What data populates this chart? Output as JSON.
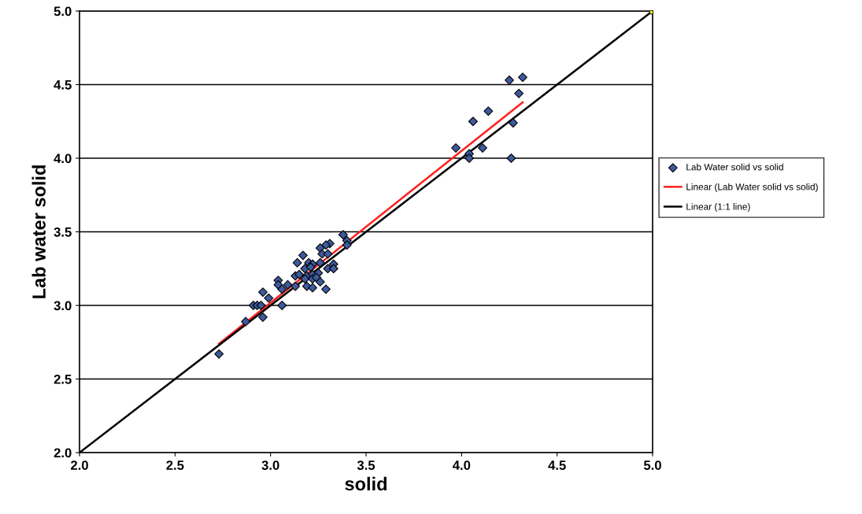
{
  "chart_data": {
    "type": "scatter",
    "xlabel": "solid",
    "ylabel": "Lab water solid",
    "xlim": [
      2.0,
      5.0
    ],
    "ylim": [
      2.0,
      5.0
    ],
    "xticks": [
      {
        "value": 2.0,
        "label": "2.0"
      },
      {
        "value": 2.5,
        "label": "2.5"
      },
      {
        "value": 3.0,
        "label": "3.0"
      },
      {
        "value": 3.5,
        "label": "3.5"
      },
      {
        "value": 4.0,
        "label": "4.0"
      },
      {
        "value": 4.5,
        "label": "4.5"
      },
      {
        "value": 5.0,
        "label": "5.0"
      }
    ],
    "yticks": [
      {
        "value": 2.0,
        "label": "2.0"
      },
      {
        "value": 2.5,
        "label": "2.5"
      },
      {
        "value": 3.0,
        "label": "3.0"
      },
      {
        "value": 3.5,
        "label": "3.5"
      },
      {
        "value": 4.0,
        "label": "4.0"
      },
      {
        "value": 4.5,
        "label": "4.5"
      },
      {
        "value": 5.0,
        "label": "5.0"
      }
    ],
    "grid": "y",
    "legend": "right",
    "series": [
      {
        "name": "Lab Water solid vs solid",
        "marker": "diamond",
        "color": "#3d5a9e",
        "x": [
          4.25,
          4.32,
          4.3,
          4.14,
          4.06,
          3.97,
          4.11,
          4.04,
          4.04,
          4.26,
          4.27,
          3.38,
          3.4,
          3.4,
          3.31,
          3.29,
          3.26,
          3.27,
          3.3,
          3.17,
          3.14,
          3.2,
          3.22,
          3.26,
          3.33,
          3.18,
          3.21,
          3.3,
          3.33,
          3.13,
          3.15,
          3.19,
          3.22,
          3.25,
          3.18,
          3.22,
          3.24,
          3.04,
          3.04,
          3.09,
          3.13,
          3.19,
          3.22,
          3.26,
          3.06,
          3.29,
          2.96,
          2.99,
          2.91,
          2.93,
          2.95,
          3.06,
          2.87,
          2.96,
          2.73
        ],
        "values": [
          4.53,
          4.55,
          4.44,
          4.32,
          4.25,
          4.07,
          4.07,
          4.03,
          4.0,
          4.0,
          4.24,
          3.48,
          3.44,
          3.41,
          3.42,
          3.41,
          3.39,
          3.35,
          3.35,
          3.34,
          3.29,
          3.29,
          3.28,
          3.29,
          3.28,
          3.25,
          3.26,
          3.25,
          3.25,
          3.2,
          3.21,
          3.2,
          3.21,
          3.22,
          3.18,
          3.18,
          3.19,
          3.17,
          3.14,
          3.14,
          3.13,
          3.13,
          3.12,
          3.16,
          3.11,
          3.11,
          3.09,
          3.05,
          3.0,
          3.0,
          3.0,
          3.0,
          2.89,
          2.92,
          2.67
        ]
      },
      {
        "name": "Linear (Lab Water solid vs solid)",
        "type": "line",
        "color": "#ff2020",
        "x": [
          2.73,
          4.32
        ],
        "values": [
          2.74,
          4.38
        ]
      },
      {
        "name": "Linear (1:1 line)",
        "type": "line",
        "color": "#000000",
        "x": [
          2.0,
          5.0
        ],
        "values": [
          2.0,
          5.0
        ]
      },
      {
        "marker": "square",
        "color": "#ffff00",
        "x": [
          5.0
        ],
        "values": [
          5.0
        ]
      }
    ]
  }
}
